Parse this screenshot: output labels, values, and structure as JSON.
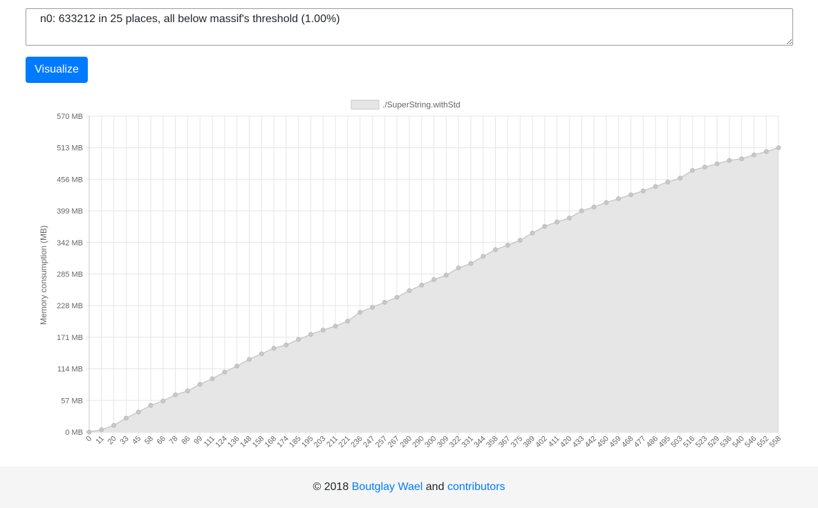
{
  "input": {
    "value": "n0: 633212 in 25 places, all below massif's threshold (1.00%)"
  },
  "actions": {
    "visualize_label": "Visualize"
  },
  "colors": {
    "accent": "#007bff",
    "fill": "#e6e6e6",
    "line": "#c8c8c8",
    "point": "#c8c8c8",
    "grid": "#e5e5e5"
  },
  "chart_data": {
    "type": "area",
    "legend": {
      "position": "top",
      "labels": [
        "./SuperString.withStd"
      ]
    },
    "ylabel": "Memory consumption (MB)",
    "xlabel": "",
    "title": "",
    "grid": true,
    "ylim": [
      0,
      570
    ],
    "y_ticks": [
      "0 MB",
      "57 MB",
      "114 MB",
      "171 MB",
      "228 MB",
      "285 MB",
      "342 MB",
      "399 MB",
      "456 MB",
      "513 MB",
      "570 MB"
    ],
    "x_tick_rotation": 45,
    "categories": [
      "0",
      "11",
      "20",
      "33",
      "45",
      "58",
      "66",
      "78",
      "86",
      "99",
      "111",
      "124",
      "136",
      "148",
      "158",
      "168",
      "174",
      "185",
      "195",
      "203",
      "211",
      "221",
      "236",
      "247",
      "257",
      "267",
      "280",
      "290",
      "300",
      "309",
      "322",
      "331",
      "344",
      "358",
      "367",
      "375",
      "389",
      "402",
      "411",
      "420",
      "433",
      "442",
      "450",
      "459",
      "468",
      "477",
      "486",
      "495",
      "503",
      "516",
      "523",
      "529",
      "536",
      "540",
      "546",
      "552",
      "558"
    ],
    "series": [
      {
        "name": "./SuperString.withStd",
        "values": [
          0,
          4,
          12,
          25,
          36,
          48,
          56,
          67,
          74,
          86,
          96,
          108,
          119,
          131,
          141,
          151,
          157,
          167,
          176,
          184,
          191,
          200,
          216,
          225,
          234,
          243,
          255,
          265,
          275,
          283,
          296,
          304,
          317,
          329,
          337,
          346,
          359,
          371,
          379,
          386,
          399,
          406,
          414,
          421,
          428,
          435,
          443,
          451,
          458,
          472,
          478,
          484,
          490,
          493,
          500,
          506,
          513
        ]
      }
    ]
  },
  "footer": {
    "prefix": "© 2018",
    "author_link": "Boutglay Wael",
    "middle": "and",
    "contributors_link": "contributors"
  }
}
